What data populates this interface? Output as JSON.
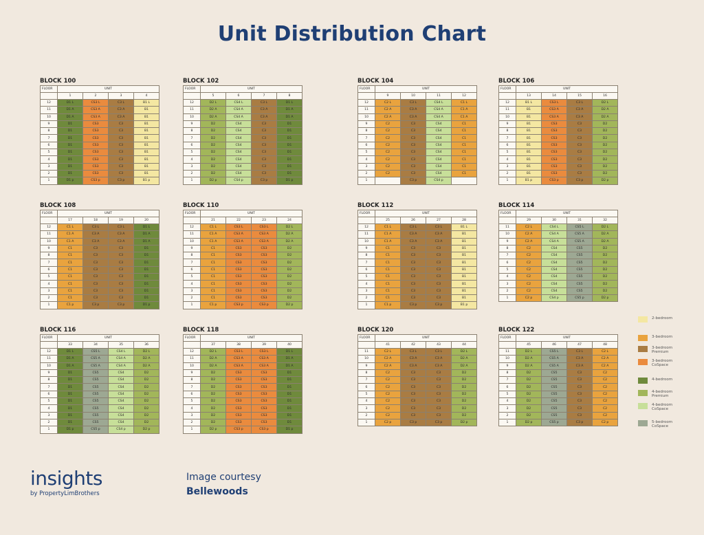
{
  "title": "Unit Distribution Chart",
  "colors": {
    "2-bedroom": "#f4e7a2",
    "3-bedroom": "#e9a33e",
    "3-bedroom-premium": "#a97c43",
    "3-bedroom-cospace": "#ea8b3e",
    "4-bedroom": "#6f8a3c",
    "4-bedroom-premium": "#a2b65a",
    "4-bedroom-cospace": "#c7df99",
    "5-bedroom-cospace": "#9da893",
    "empty": "#fbf8f2"
  },
  "labels": {
    "floor": "FLOOR",
    "unit": "UNIT"
  },
  "legend": [
    {
      "label": "2-bedroom",
      "color_key": "2-bedroom"
    },
    {
      "label": "3-bedroom",
      "color_key": "3-bedroom"
    },
    {
      "label": "3-bedroom Premium",
      "color_key": "3-bedroom-premium"
    },
    {
      "label": "3-bedroom CoSpace",
      "color_key": "3-bedroom-cospace"
    },
    {
      "label": "4-bedroom",
      "color_key": "4-bedroom"
    },
    {
      "label": "4-bedroom Premium",
      "color_key": "4-bedroom-premium"
    },
    {
      "label": "4-bedroom CoSpace",
      "color_key": "4-bedroom-cospace"
    },
    {
      "label": "5-bedroom CoSpace",
      "color_key": "5-bedroom-cospace"
    }
  ],
  "blocks": [
    {
      "name": "BLOCK 100",
      "units": [
        "1",
        "2",
        "3",
        "4"
      ],
      "cols": [
        {
          "c": "4-bedroom",
          "v": [
            "D1 L",
            "D1 A",
            "D1 A",
            "D1",
            "D1",
            "D1",
            "D1",
            "D1",
            "D1",
            "D1",
            "D1",
            "D1 p"
          ]
        },
        {
          "c": "3-bedroom-cospace",
          "v": [
            "CS3 L",
            "CS3 A",
            "CS3 A",
            "CS3",
            "CS3",
            "CS3",
            "CS3",
            "CS3",
            "CS3",
            "CS3",
            "CS3",
            "CS3 p"
          ]
        },
        {
          "c": "3-bedroom-premium",
          "v": [
            "C3 L",
            "C3 A",
            "C3 A",
            "C3",
            "C3",
            "C3",
            "C3",
            "C3",
            "C3",
            "C3",
            "C3",
            "C3 p"
          ]
        },
        {
          "c": "2-bedroom",
          "v": [
            "B1 L",
            "B1",
            "B1",
            "B1",
            "B1",
            "B1",
            "B1",
            "B1",
            "B1",
            "B1",
            "B1",
            "B1 p"
          ]
        }
      ],
      "floors": [
        "12",
        "11",
        "10",
        "9",
        "8",
        "7",
        "6",
        "5",
        "4",
        "3",
        "2",
        "1"
      ]
    },
    {
      "name": "BLOCK 102",
      "units": [
        "5",
        "6",
        "7",
        "8"
      ],
      "cols": [
        {
          "c": "4-bedroom-premium",
          "v": [
            "D2 L",
            "D2 A",
            "D2 A",
            "D2",
            "D2",
            "D2",
            "D2",
            "D2",
            "D2",
            "D2",
            "D2",
            "D2 p"
          ]
        },
        {
          "c": "4-bedroom-cospace",
          "v": [
            "CS4 L",
            "CS4 A",
            "CS4 A",
            "CS4",
            "CS4",
            "CS4",
            "CS4",
            "CS4",
            "CS4",
            "CS4",
            "CS4",
            "CS4 p"
          ]
        },
        {
          "c": "3-bedroom-premium",
          "v": [
            "C3 L",
            "C3 A",
            "C3 A",
            "C3",
            "C3",
            "C3",
            "C3",
            "C3",
            "C3",
            "C3",
            "C3",
            "C3 p"
          ]
        },
        {
          "c": "4-bedroom",
          "v": [
            "D1 L",
            "D1 A",
            "D1 A",
            "D1",
            "D1",
            "D1",
            "D1",
            "D1",
            "D1",
            "D1",
            "D1",
            "D1 p"
          ]
        }
      ],
      "floors": [
        "12",
        "11",
        "10",
        "9",
        "8",
        "7",
        "6",
        "5",
        "4",
        "3",
        "2",
        "1"
      ]
    },
    {
      "name": "BLOCK 104",
      "units": [
        "9",
        "10",
        "11",
        "12"
      ],
      "cols": [
        {
          "c": "3-bedroom",
          "v": [
            "C2 L",
            "C2 A",
            "C2 A",
            "C2",
            "C2",
            "C2",
            "C2",
            "C2",
            "C2",
            "C2",
            "C2",
            ""
          ],
          "empty": [
            11
          ]
        },
        {
          "c": "3-bedroom-premium",
          "v": [
            "C3 L",
            "C3 A",
            "C3 A",
            "C3",
            "C3",
            "C3",
            "C3",
            "C3",
            "C3",
            "C3",
            "C3",
            "C3 p"
          ]
        },
        {
          "c": "4-bedroom-cospace",
          "v": [
            "CS4 L",
            "CS4 A",
            "CS4 A",
            "CS4",
            "CS4",
            "CS4",
            "CS4",
            "CS4",
            "CS4",
            "CS4",
            "CS4",
            "CS4 p"
          ]
        },
        {
          "c": "3-bedroom",
          "v": [
            "C1 L",
            "C1 A",
            "C1 A",
            "C1",
            "C1",
            "C1",
            "C1",
            "C1",
            "C1",
            "C1",
            "C1",
            ""
          ],
          "empty": [
            11
          ]
        }
      ],
      "floors": [
        "12",
        "11",
        "10",
        "9",
        "8",
        "7",
        "6",
        "5",
        "4",
        "3",
        "2",
        "1"
      ]
    },
    {
      "name": "BLOCK 106",
      "units": [
        "13",
        "14",
        "15",
        "16"
      ],
      "cols": [
        {
          "c": "2-bedroom",
          "v": [
            "B1 L",
            "B1",
            "B1",
            "B1",
            "B1",
            "B1",
            "B1",
            "B1",
            "B1",
            "B1",
            "B1",
            "B1 p"
          ]
        },
        {
          "c": "3-bedroom-cospace",
          "v": [
            "CS3 L",
            "CS3 A",
            "CS3 A",
            "CS3",
            "CS3",
            "CS3",
            "CS3",
            "CS3",
            "CS3",
            "CS3",
            "CS3",
            "CS3 p"
          ]
        },
        {
          "c": "3-bedroom-premium",
          "v": [
            "C3 L",
            "C3 A",
            "C3 A",
            "C3",
            "C3",
            "C3",
            "C3",
            "C3",
            "C3",
            "C3",
            "C3",
            "C3 p"
          ]
        },
        {
          "c": "4-bedroom-premium",
          "v": [
            "D2 L",
            "D2 A",
            "D2 A",
            "D2",
            "D2",
            "D2",
            "D2",
            "D2",
            "D2",
            "D2",
            "D2",
            "D2 p"
          ]
        }
      ],
      "floors": [
        "12",
        "11",
        "10",
        "9",
        "8",
        "7",
        "6",
        "5",
        "4",
        "3",
        "2",
        "1"
      ]
    },
    {
      "name": "BLOCK 108",
      "units": [
        "17",
        "18",
        "19",
        "20"
      ],
      "cols": [
        {
          "c": "3-bedroom",
          "v": [
            "C1 L",
            "C1 A",
            "C1 A",
            "C1",
            "C1",
            "C1",
            "C1",
            "C1",
            "C1",
            "C1",
            "C1",
            "C1 p"
          ]
        },
        {
          "c": "3-bedroom-premium",
          "v": [
            "C3 L",
            "C3 A",
            "C3 A",
            "C3",
            "C3",
            "C3",
            "C3",
            "C3",
            "C3",
            "C3",
            "C3",
            "C3 p"
          ]
        },
        {
          "c": "3-bedroom-premium",
          "v": [
            "C3 L",
            "C3 A",
            "C3 A",
            "C3",
            "C3",
            "C3",
            "C3",
            "C3",
            "C3",
            "C3",
            "C3",
            "C3 p"
          ]
        },
        {
          "c": "4-bedroom",
          "v": [
            "D1 L",
            "D1 A",
            "D1 A",
            "D1",
            "D1",
            "D1",
            "D1",
            "D1",
            "D1",
            "D1",
            "D1",
            "D1 p"
          ]
        }
      ],
      "floors": [
        "12",
        "11",
        "10",
        "9",
        "8",
        "7",
        "6",
        "5",
        "4",
        "3",
        "2",
        "1"
      ]
    },
    {
      "name": "BLOCK 110",
      "units": [
        "21",
        "22",
        "23",
        "24"
      ],
      "cols": [
        {
          "c": "3-bedroom",
          "v": [
            "C1 L",
            "C1 A",
            "C1 A",
            "C1",
            "C1",
            "C1",
            "C1",
            "C1",
            "C1",
            "C1",
            "C1",
            "C1 p"
          ]
        },
        {
          "c": "3-bedroom-cospace",
          "v": [
            "CS3 L",
            "CS3 A",
            "CS3 A",
            "CS3",
            "CS3",
            "CS3",
            "CS3",
            "CS3",
            "CS3",
            "CS3",
            "CS3",
            "CS3 p"
          ]
        },
        {
          "c": "3-bedroom-cospace",
          "v": [
            "CS3 L",
            "CS3 A",
            "CS3 A",
            "CS3",
            "CS3",
            "CS3",
            "CS3",
            "CS3",
            "CS3",
            "CS3",
            "CS3",
            "CS3 p"
          ]
        },
        {
          "c": "4-bedroom-premium",
          "v": [
            "D2 L",
            "D2 A",
            "D2 A",
            "D2",
            "D2",
            "D2",
            "D2",
            "D2",
            "D2",
            "D2",
            "D2",
            "D2 p"
          ]
        }
      ],
      "floors": [
        "12",
        "11",
        "10",
        "9",
        "8",
        "7",
        "6",
        "5",
        "4",
        "3",
        "2",
        "1"
      ]
    },
    {
      "name": "BLOCK 112",
      "units": [
        "25",
        "26",
        "27",
        "28"
      ],
      "cols": [
        {
          "c": "3-bedroom",
          "v": [
            "C1 L",
            "C1 A",
            "C1 A",
            "C1",
            "C1",
            "C1",
            "C1",
            "C1",
            "C1",
            "C1",
            "C1",
            "C1 p"
          ]
        },
        {
          "c": "3-bedroom-premium",
          "v": [
            "C3 L",
            "C3 A",
            "C3 A",
            "C3",
            "C3",
            "C3",
            "C3",
            "C3",
            "C3",
            "C3",
            "C3",
            "C3 p"
          ]
        },
        {
          "c": "3-bedroom-premium",
          "v": [
            "C3 L",
            "C3 A",
            "C3 A",
            "C3",
            "C3",
            "C3",
            "C3",
            "C3",
            "C3",
            "C3",
            "C3",
            "C3 p"
          ]
        },
        {
          "c": "2-bedroom",
          "v": [
            "B1 L",
            "B1",
            "B1",
            "B1",
            "B1",
            "B1",
            "B1",
            "B1",
            "B1",
            "B1",
            "B1",
            "B1 p"
          ]
        }
      ],
      "floors": [
        "12",
        "11",
        "10",
        "9",
        "8",
        "7",
        "6",
        "5",
        "4",
        "3",
        "2",
        "1"
      ]
    },
    {
      "name": "BLOCK 114",
      "units": [
        "29",
        "30",
        "31",
        "32"
      ],
      "cols": [
        {
          "c": "3-bedroom",
          "v": [
            "C2 L",
            "C2 A",
            "C2 A",
            "C2",
            "C2",
            "C2",
            "C2",
            "C2",
            "C2",
            "C2",
            "C2 p"
          ]
        },
        {
          "c": "4-bedroom-cospace",
          "v": [
            "CS4 L",
            "CS4 A",
            "CS4 A",
            "CS4",
            "CS4",
            "CS4",
            "CS4",
            "CS4",
            "CS4",
            "CS4",
            "CS4 p"
          ]
        },
        {
          "c": "5-bedroom-cospace",
          "v": [
            "CS5 L",
            "CS5 A",
            "CS5 A",
            "CS5",
            "CS5",
            "CS5",
            "CS5",
            "CS5",
            "CS5",
            "CS5",
            "CS5 p"
          ]
        },
        {
          "c": "4-bedroom-premium",
          "v": [
            "D2 L",
            "D2 A",
            "D2 A",
            "D2",
            "D2",
            "D2",
            "D2",
            "D2",
            "D2",
            "D2",
            "D2 p"
          ]
        }
      ],
      "floors": [
        "11",
        "10",
        "9",
        "8",
        "7",
        "6",
        "5",
        "4",
        "3",
        "2",
        "1"
      ]
    },
    {
      "name": "BLOCK 116",
      "units": [
        "33",
        "34",
        "35",
        "36"
      ],
      "cols": [
        {
          "c": "4-bedroom",
          "v": [
            "D1 L",
            "D1 A",
            "D1 A",
            "D1",
            "D1",
            "D1",
            "D1",
            "D1",
            "D1",
            "D1",
            "D1",
            "D1 p"
          ]
        },
        {
          "c": "5-bedroom-cospace",
          "v": [
            "CS5 L",
            "CS5 A",
            "CS5 A",
            "CS5",
            "CS5",
            "CS5",
            "CS5",
            "CS5",
            "CS5",
            "CS5",
            "CS5",
            "CS5 p"
          ]
        },
        {
          "c": "4-bedroom-cospace",
          "v": [
            "CS4 L",
            "CS4 A",
            "CS4 A",
            "CS4",
            "CS4",
            "CS4",
            "CS4",
            "CS4",
            "CS4",
            "CS4",
            "CS4",
            "CS4 p"
          ]
        },
        {
          "c": "4-bedroom-premium",
          "v": [
            "D2 L",
            "D2 A",
            "D2 A",
            "D2",
            "D2",
            "D2",
            "D2",
            "D2",
            "D2",
            "D2",
            "D2",
            "D2 p"
          ]
        }
      ],
      "floors": [
        "12",
        "11",
        "10",
        "9",
        "8",
        "7",
        "6",
        "5",
        "4",
        "3",
        "2",
        "1"
      ]
    },
    {
      "name": "BLOCK 118",
      "units": [
        "37",
        "38",
        "39",
        "40"
      ],
      "cols": [
        {
          "c": "4-bedroom-premium",
          "v": [
            "D2 L",
            "D2 A",
            "D2 A",
            "D2",
            "D2",
            "D2",
            "D2",
            "D2",
            "D2",
            "D2",
            "D2",
            "D2 p"
          ]
        },
        {
          "c": "3-bedroom-cospace",
          "v": [
            "CS3 L",
            "CS3 A",
            "CS3 A",
            "CS3",
            "CS3",
            "CS3",
            "CS3",
            "CS3",
            "CS3",
            "CS3",
            "CS3",
            "CS3 p"
          ]
        },
        {
          "c": "3-bedroom-cospace",
          "v": [
            "CS3 L",
            "CS3 A",
            "CS3 A",
            "CS3",
            "CS3",
            "CS3",
            "CS3",
            "CS3",
            "CS3",
            "CS3",
            "CS3",
            "CS3 p"
          ]
        },
        {
          "c": "4-bedroom",
          "v": [
            "D1 L",
            "D1 A",
            "D1 A",
            "D1",
            "D1",
            "D1",
            "D1",
            "D1",
            "D1",
            "D1",
            "D1",
            "D1 p"
          ]
        }
      ],
      "floors": [
        "12",
        "11",
        "10",
        "9",
        "8",
        "7",
        "6",
        "5",
        "4",
        "3",
        "2",
        "1"
      ]
    },
    {
      "name": "BLOCK 120",
      "units": [
        "41",
        "42",
        "43",
        "44"
      ],
      "cols": [
        {
          "c": "3-bedroom",
          "v": [
            "C2 L",
            "C2 A",
            "C2 A",
            "C2",
            "C2",
            "C2",
            "C2",
            "C2",
            "C2",
            "C2",
            "C2 p"
          ]
        },
        {
          "c": "3-bedroom-premium",
          "v": [
            "C3 L",
            "C3 A",
            "C3 A",
            "C3",
            "C3",
            "C3",
            "C3",
            "C3",
            "C3",
            "C3",
            "C3 p"
          ]
        },
        {
          "c": "3-bedroom-premium",
          "v": [
            "C3 L",
            "C3 A",
            "C3 A",
            "C3",
            "C3",
            "C3",
            "C3",
            "C3",
            "C3",
            "C3",
            "C3 p"
          ]
        },
        {
          "c": "4-bedroom-premium",
          "v": [
            "D2 L",
            "D2 A",
            "D2 A",
            "D2",
            "D2",
            "D2",
            "D2",
            "D2",
            "D2",
            "D2",
            "D2 p"
          ]
        }
      ],
      "floors": [
        "11",
        "10",
        "9",
        "8",
        "7",
        "6",
        "5",
        "4",
        "3",
        "2",
        "1"
      ]
    },
    {
      "name": "BLOCK 122",
      "units": [
        "45",
        "46",
        "47",
        "48"
      ],
      "cols": [
        {
          "c": "4-bedroom-premium",
          "v": [
            "D2 L",
            "D2 A",
            "D2 A",
            "D2",
            "D2",
            "D2",
            "D2",
            "D2",
            "D2",
            "D2",
            "D2 p"
          ]
        },
        {
          "c": "5-bedroom-cospace",
          "v": [
            "CS5 L",
            "CS5 A",
            "CS5 A",
            "CS5",
            "CS5",
            "CS5",
            "CS5",
            "CS5",
            "CS5",
            "CS5",
            "CS5 p"
          ]
        },
        {
          "c": "3-bedroom-premium",
          "v": [
            "C3 L",
            "C3 A",
            "C3 A",
            "C3",
            "C3",
            "C3",
            "C3",
            "C3",
            "C3",
            "C3",
            "C3 p"
          ]
        },
        {
          "c": "3-bedroom",
          "v": [
            "C2 L",
            "C2 A",
            "C2 A",
            "C2",
            "C2",
            "C2",
            "C2",
            "C2",
            "C2",
            "C2",
            "C2 p"
          ]
        }
      ],
      "floors": [
        "11",
        "10",
        "9",
        "8",
        "7",
        "6",
        "5",
        "4",
        "3",
        "2",
        "1"
      ]
    }
  ],
  "footer": {
    "logo_main": "insights",
    "logo_sub": "by PropertyLimBrothers",
    "courtesy_line1": "Image courtesy",
    "courtesy_line2": "Bellewoods"
  }
}
